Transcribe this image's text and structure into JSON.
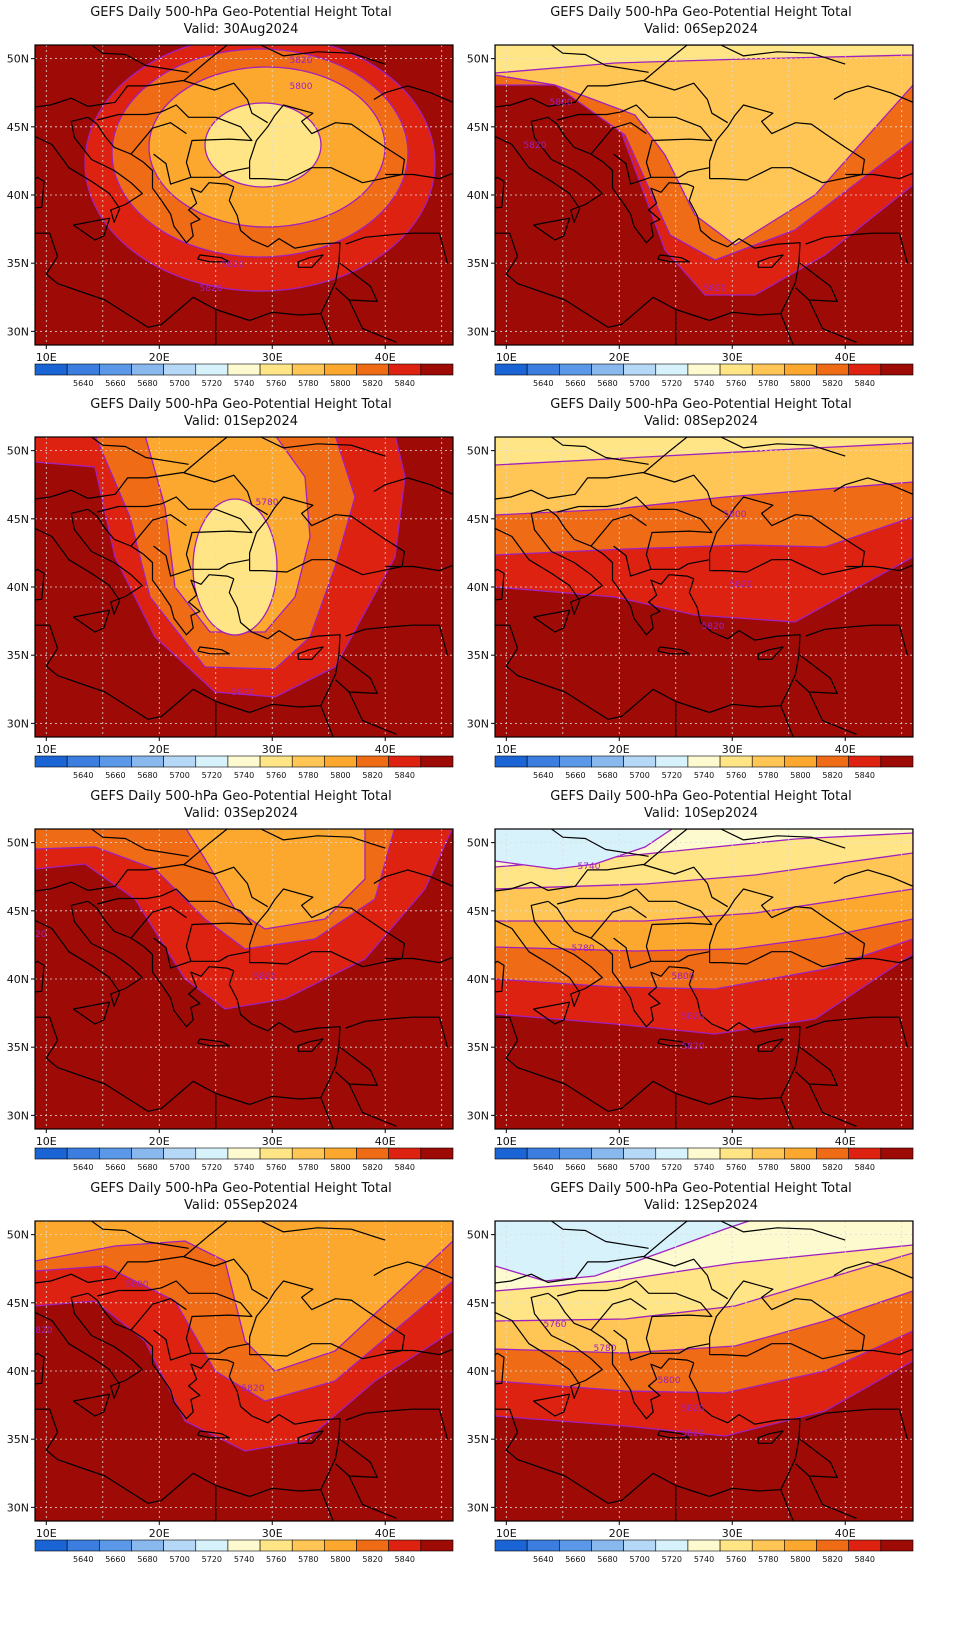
{
  "colors": {
    "levels": [
      "#1a64d6",
      "#3c7ee0",
      "#5c98e8",
      "#88b8ee",
      "#b4d8f6",
      "#d8f2fc",
      "#fefad0",
      "#ffe585",
      "#ffc555",
      "#fca82e",
      "#ef6b16",
      "#de2212",
      "#9e0a06"
    ],
    "contour": "#a020c0",
    "coast": "#000000",
    "grid": "#d8d8d8"
  },
  "colorbar": {
    "labels": [
      "5640",
      "5660",
      "5680",
      "5700",
      "5720",
      "5740",
      "5760",
      "5780",
      "5800",
      "5820",
      "5840"
    ]
  },
  "axes": {
    "lon_ticks": [
      "10E",
      "20E",
      "30E",
      "40E"
    ],
    "lat_ticks": [
      "50N",
      "45N",
      "40N",
      "35N",
      "30N"
    ]
  },
  "panels": [
    {
      "title": "GEFS Daily 500-hPa Geo-Potential Height Total",
      "valid": "Valid: 30Aug2024",
      "labels": [
        "5820",
        "5800",
        "5820",
        "5820"
      ]
    },
    {
      "title": "GEFS Daily 500-hPa Geo-Potential Height Total",
      "valid": "Valid: 06Sep2024",
      "labels": [
        "5800",
        "5820",
        "5820"
      ]
    },
    {
      "title": "GEFS Daily 500-hPa Geo-Potential Height Total",
      "valid": "Valid: 01Sep2024",
      "labels": [
        "5780",
        "5820"
      ]
    },
    {
      "title": "GEFS Daily 500-hPa Geo-Potential Height Total",
      "valid": "Valid: 08Sep2024",
      "labels": [
        "5800",
        "5820",
        "5820"
      ]
    },
    {
      "title": "GEFS Daily 500-hPa Geo-Potential Height Total",
      "valid": "Valid: 03Sep2024",
      "labels": [
        "5820",
        "5820"
      ]
    },
    {
      "title": "GEFS Daily 500-hPa Geo-Potential Height Total",
      "valid": "Valid: 10Sep2024",
      "labels": [
        "5740",
        "5780",
        "5800",
        "5820",
        "5820"
      ]
    },
    {
      "title": "GEFS Daily 500-hPa Geo-Potential Height Total",
      "valid": "Valid: 05Sep2024",
      "labels": [
        "5800",
        "5820",
        "5820"
      ]
    },
    {
      "title": "GEFS Daily 500-hPa Geo-Potential Height Total",
      "valid": "Valid: 12Sep2024",
      "labels": [
        "5760",
        "5780",
        "5800",
        "5820",
        "5820"
      ]
    }
  ]
}
